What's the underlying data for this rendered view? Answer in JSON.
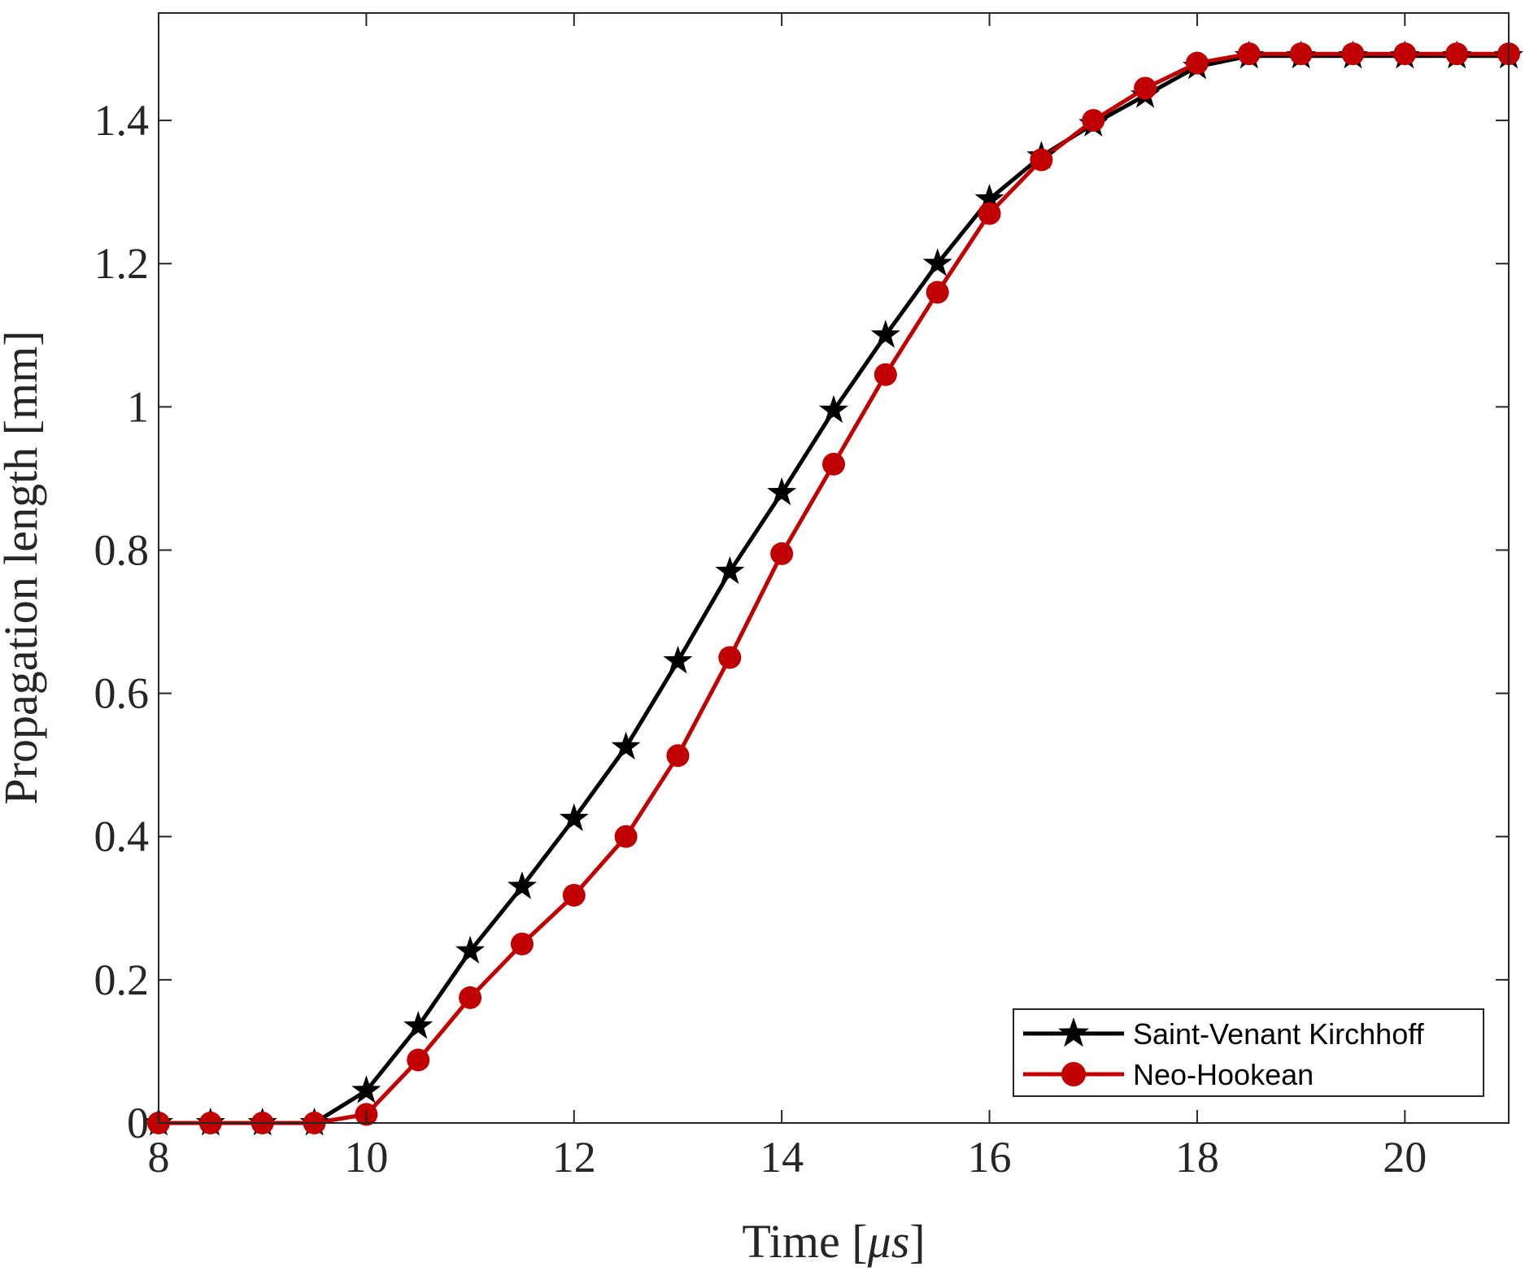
{
  "chart_data": {
    "type": "line",
    "xlabel": "Time [",
    "xlabel_unit": "μs",
    "xlabel_end": "]",
    "ylabel": "Propagation length [mm]",
    "xlim": [
      8,
      21
    ],
    "ylim": [
      0,
      1.55
    ],
    "xticks": [
      8,
      10,
      12,
      14,
      16,
      18,
      20
    ],
    "xtick_labels": [
      "8",
      "10",
      "12",
      "14",
      "16",
      "18",
      "20"
    ],
    "yticks": [
      0,
      0.2,
      0.4,
      0.6,
      0.8,
      1.0,
      1.2,
      1.4
    ],
    "ytick_labels": [
      "0",
      "0.2",
      "0.4",
      "0.6",
      "0.8",
      "1",
      "1.2",
      "1.4"
    ],
    "grid": false,
    "legend_position": "bottom-right",
    "x": [
      8,
      8.5,
      9,
      9.5,
      10,
      10.5,
      11,
      11.5,
      12,
      12.5,
      13,
      13.5,
      14,
      14.5,
      15,
      15.5,
      16,
      16.5,
      17,
      17.5,
      18,
      18.5,
      19,
      19.5,
      20,
      20.5,
      21
    ],
    "series": [
      {
        "name": "Saint-Venant Kirchhoff",
        "color": "#000000",
        "marker": "star",
        "values": [
          0,
          0,
          0,
          0,
          0.045,
          0.135,
          0.24,
          0.33,
          0.425,
          0.525,
          0.645,
          0.77,
          0.88,
          0.995,
          1.1,
          1.2,
          1.29,
          1.35,
          1.395,
          1.435,
          1.475,
          1.49,
          1.49,
          1.49,
          1.49,
          1.49,
          1.49
        ]
      },
      {
        "name": "Neo-Hookean",
        "color": "#c00000",
        "marker": "circle",
        "values": [
          0,
          0,
          0,
          0,
          0.012,
          0.088,
          0.175,
          0.25,
          0.318,
          0.4,
          0.513,
          0.65,
          0.795,
          0.92,
          1.045,
          1.16,
          1.27,
          1.345,
          1.4,
          1.445,
          1.48,
          1.493,
          1.493,
          1.493,
          1.493,
          1.493,
          1.493
        ]
      }
    ]
  }
}
